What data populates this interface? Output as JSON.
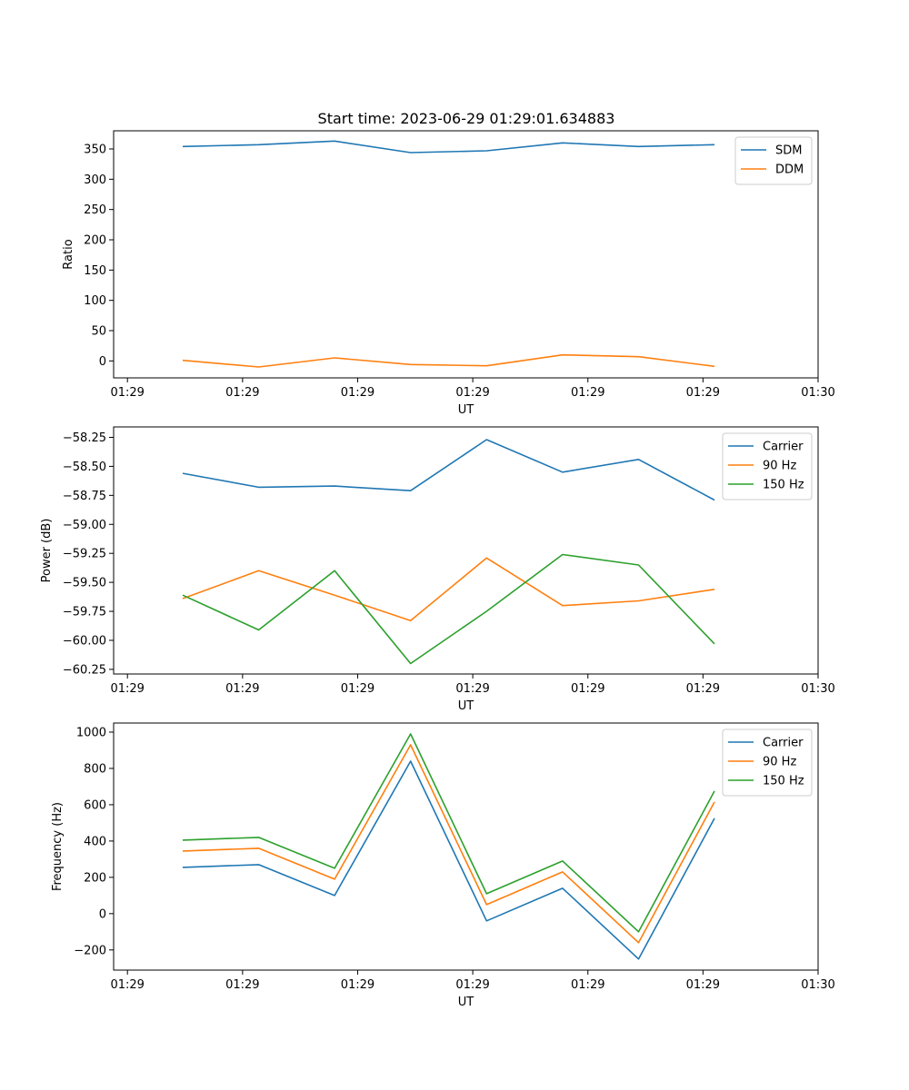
{
  "figure": {
    "title": "Start time: 2023-06-29 01:29:01.634883"
  },
  "chart_data": [
    {
      "type": "line",
      "name": "ratio-panel",
      "xlabel": "UT",
      "ylabel": "Ratio",
      "x_ticks": [
        "01:29",
        "01:29",
        "01:29",
        "01:29",
        "01:29",
        "01:29",
        "01:30"
      ],
      "x_tick_values": [
        0.0,
        0.1667,
        0.3333,
        0.5,
        0.6667,
        0.8333,
        1.0
      ],
      "x": [
        0.08,
        0.19,
        0.3,
        0.41,
        0.52,
        0.63,
        0.74,
        0.85
      ],
      "xlim": [
        -0.02,
        1.0
      ],
      "ylim": [
        -28,
        380
      ],
      "y_ticks": [
        0,
        50,
        100,
        150,
        200,
        250,
        300,
        350
      ],
      "y_tick_labels": [
        "0",
        "50",
        "100",
        "150",
        "200",
        "250",
        "300",
        "350"
      ],
      "legend": "top-right",
      "series": [
        {
          "name": "SDM",
          "color": "#1f77b4",
          "values": [
            354,
            357,
            363,
            344,
            347,
            360,
            354,
            357
          ]
        },
        {
          "name": "DDM",
          "color": "#ff7f0e",
          "values": [
            1,
            -10,
            5,
            -6,
            -8,
            10,
            7,
            -9
          ]
        }
      ]
    },
    {
      "type": "line",
      "name": "power-panel",
      "xlabel": "UT",
      "ylabel": "Power (dB)",
      "x_ticks": [
        "01:29",
        "01:29",
        "01:29",
        "01:29",
        "01:29",
        "01:29",
        "01:30"
      ],
      "x_tick_values": [
        0.0,
        0.1667,
        0.3333,
        0.5,
        0.6667,
        0.8333,
        1.0
      ],
      "x": [
        0.08,
        0.19,
        0.3,
        0.41,
        0.52,
        0.63,
        0.74,
        0.85
      ],
      "xlim": [
        -0.02,
        1.0
      ],
      "ylim": [
        -60.29,
        -58.16
      ],
      "y_ticks": [
        -60.25,
        -60.0,
        -59.75,
        -59.5,
        -59.25,
        -59.0,
        -58.75,
        -58.5,
        -58.25
      ],
      "y_tick_labels": [
        "−60.25",
        "−60.00",
        "−59.75",
        "−59.50",
        "−59.25",
        "−59.00",
        "−58.75",
        "−58.50",
        "−58.25"
      ],
      "legend": "top-right",
      "series": [
        {
          "name": "Carrier",
          "color": "#1f77b4",
          "values": [
            -58.56,
            -58.68,
            -58.67,
            -58.71,
            -58.27,
            -58.55,
            -58.44,
            -58.79
          ]
        },
        {
          "name": "90 Hz",
          "color": "#ff7f0e",
          "values": [
            -59.64,
            -59.4,
            -59.61,
            -59.83,
            -59.29,
            -59.7,
            -59.66,
            -59.56
          ]
        },
        {
          "name": "150 Hz",
          "color": "#2ca02c",
          "values": [
            -59.61,
            -59.91,
            -59.4,
            -60.2,
            -59.75,
            -59.26,
            -59.35,
            -60.03
          ]
        }
      ]
    },
    {
      "type": "line",
      "name": "frequency-panel",
      "xlabel": "UT",
      "ylabel": "Frequency (Hz)",
      "x_ticks": [
        "01:29",
        "01:29",
        "01:29",
        "01:29",
        "01:29",
        "01:29",
        "01:30"
      ],
      "x_tick_values": [
        0.0,
        0.1667,
        0.3333,
        0.5,
        0.6667,
        0.8333,
        1.0
      ],
      "x": [
        0.08,
        0.19,
        0.3,
        0.41,
        0.52,
        0.63,
        0.74,
        0.85
      ],
      "xlim": [
        -0.02,
        1.0
      ],
      "ylim": [
        -311,
        1050
      ],
      "y_ticks": [
        -200,
        0,
        200,
        400,
        600,
        800,
        1000
      ],
      "y_tick_labels": [
        "−200",
        "0",
        "200",
        "400",
        "600",
        "800",
        "1000"
      ],
      "legend": "top-right",
      "series": [
        {
          "name": "Carrier",
          "color": "#1f77b4",
          "values": [
            255,
            270,
            100,
            840,
            -40,
            140,
            -250,
            525
          ]
        },
        {
          "name": "90 Hz",
          "color": "#ff7f0e",
          "values": [
            345,
            360,
            190,
            930,
            50,
            230,
            -160,
            615
          ]
        },
        {
          "name": "150 Hz",
          "color": "#2ca02c",
          "values": [
            405,
            420,
            250,
            990,
            110,
            290,
            -100,
            675
          ]
        }
      ]
    }
  ]
}
